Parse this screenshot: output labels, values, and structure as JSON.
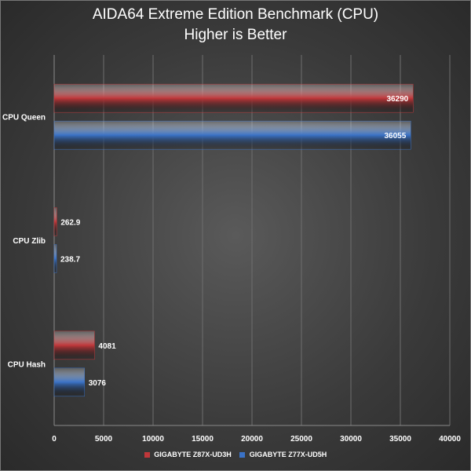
{
  "chart_data": {
    "type": "bar",
    "orientation": "horizontal",
    "title": "AIDA64 Extreme Edition Benchmark (CPU)",
    "subtitle": "Higher is Better",
    "categories": [
      "CPU Queen",
      "CPU Zlib",
      "CPU Hash"
    ],
    "series": [
      {
        "name": "GIGABYTE Z87X-UD3H",
        "color": "#c0373a",
        "values": [
          36290,
          262.9,
          4081
        ],
        "labels": [
          "36290",
          "262.9",
          "4081"
        ]
      },
      {
        "name": "GIGABYTE Z77X-UD5H",
        "color": "#3a72c6",
        "values": [
          36055,
          238.7,
          3076
        ],
        "labels": [
          "36055",
          "238.7",
          "3076"
        ]
      }
    ],
    "xlim": [
      0,
      40000
    ],
    "xticks": [
      0,
      5000,
      10000,
      15000,
      20000,
      25000,
      30000,
      35000,
      40000
    ],
    "grid": true,
    "legend_position": "bottom"
  }
}
